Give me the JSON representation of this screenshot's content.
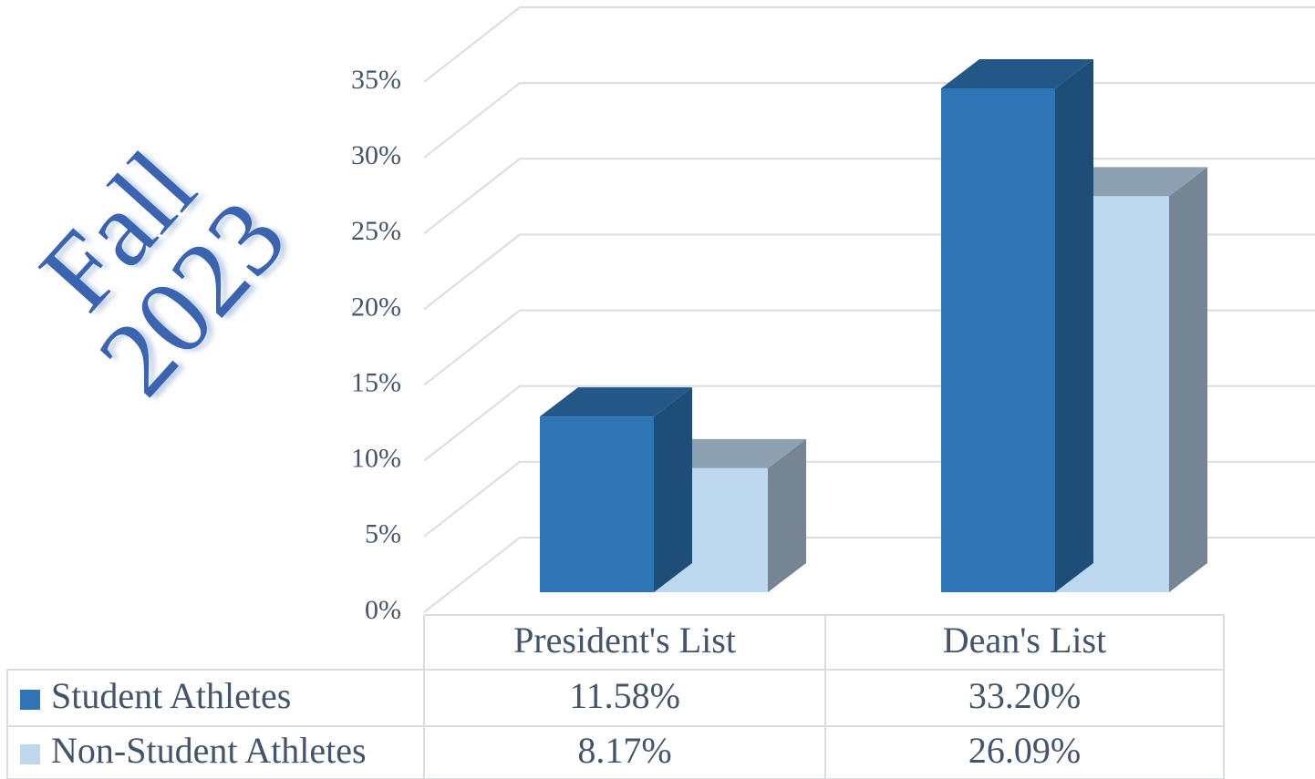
{
  "chart_data": {
    "type": "bar3d",
    "title": "Fall 2023",
    "categories": [
      "President's List",
      "Dean's List"
    ],
    "series": [
      {
        "name": "Student Athletes",
        "color": "#2e75b6",
        "values": [
          11.58,
          33.2
        ],
        "value_labels": [
          "11.58%",
          "33.20%"
        ]
      },
      {
        "name": "Non-Student Athletes",
        "color": "#bdd7ee",
        "values": [
          8.17,
          26.09
        ],
        "value_labels": [
          "8.17%",
          "26.09%"
        ]
      }
    ],
    "ylim": [
      0,
      35
    ],
    "yticks": [
      {
        "value": 0,
        "label": "0%"
      },
      {
        "value": 5,
        "label": "5%"
      },
      {
        "value": 10,
        "label": "10%"
      },
      {
        "value": 15,
        "label": "15%"
      },
      {
        "value": 20,
        "label": "20%"
      },
      {
        "value": 25,
        "label": "25%"
      },
      {
        "value": 30,
        "label": "30%"
      },
      {
        "value": 35,
        "label": "35%"
      }
    ],
    "grid": true
  }
}
